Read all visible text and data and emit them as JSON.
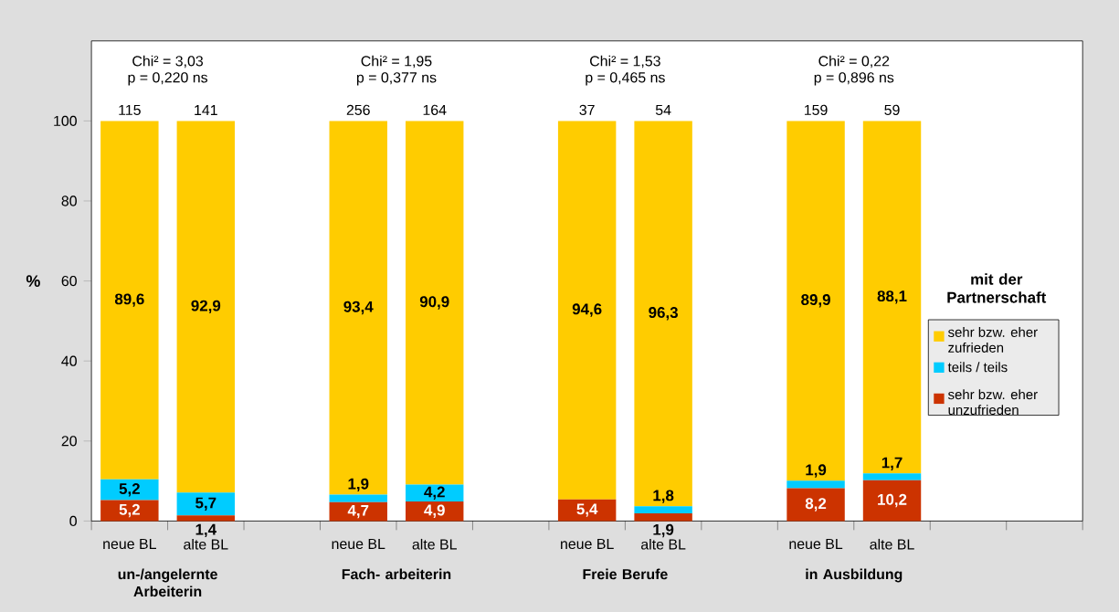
{
  "chart_data": {
    "type": "bar",
    "stacked": true,
    "categories": [
      "neue BL",
      "alte BL",
      null,
      "neue BL",
      "alte BL",
      null,
      "neue BL",
      "alte BL",
      null,
      "neue BL",
      "alte BL",
      null,
      null
    ],
    "ylabel": "%",
    "ylim": [
      0,
      120
    ],
    "yticks": [
      0,
      20,
      40,
      60,
      80,
      100
    ],
    "legend": "right",
    "legend_title": "mit der Partnerschaft",
    "series": [
      {
        "name": "sehr bzw. eher unzufrieden",
        "color": "#cc3300",
        "values": [
          5.2,
          1.4,
          null,
          4.7,
          4.9,
          null,
          5.4,
          1.9,
          null,
          8.2,
          10.2,
          null,
          null
        ],
        "value_labels": [
          "5,2",
          "1,4",
          null,
          "4,7",
          "4,9",
          null,
          "5,4",
          "1,9",
          null,
          "8,2",
          "10,2",
          null,
          null
        ]
      },
      {
        "name": "teils / teils",
        "color": "#00ccff",
        "values": [
          5.2,
          5.7,
          null,
          1.9,
          4.2,
          null,
          0,
          1.8,
          null,
          1.9,
          1.7,
          null,
          null
        ],
        "value_labels": [
          "5,2",
          "5,7",
          null,
          "1,9",
          "4,2",
          null,
          null,
          "1,8",
          null,
          "1,9",
          "1,7",
          null,
          null
        ]
      },
      {
        "name": "sehr bzw. eher zufrieden",
        "color": "#ffcc00",
        "values": [
          89.6,
          92.9,
          null,
          93.4,
          90.9,
          null,
          94.6,
          96.3,
          null,
          89.9,
          88.1,
          null,
          null
        ],
        "value_labels": [
          "89,6",
          "92,9",
          null,
          "93,4",
          "90,9",
          null,
          "94,6",
          "96,3",
          null,
          "89,9",
          "88,1",
          null,
          null
        ]
      }
    ],
    "annotations": [
      "Chi² = 3,03",
      "p = 0,220 ns",
      "un-/angelernte Arbeiterin",
      "115",
      "141",
      "Chi² = 1,95",
      "p = 0,377 ns",
      "Fach- arbeiterin",
      "256",
      "164",
      "Chi² = 1,53",
      "p = 0,465 ns",
      "Freie Berufe",
      "37",
      "54",
      "Chi² = 0,22",
      "p = 0,896 ns",
      "in Ausbildung",
      "159",
      "59"
    ]
  }
}
